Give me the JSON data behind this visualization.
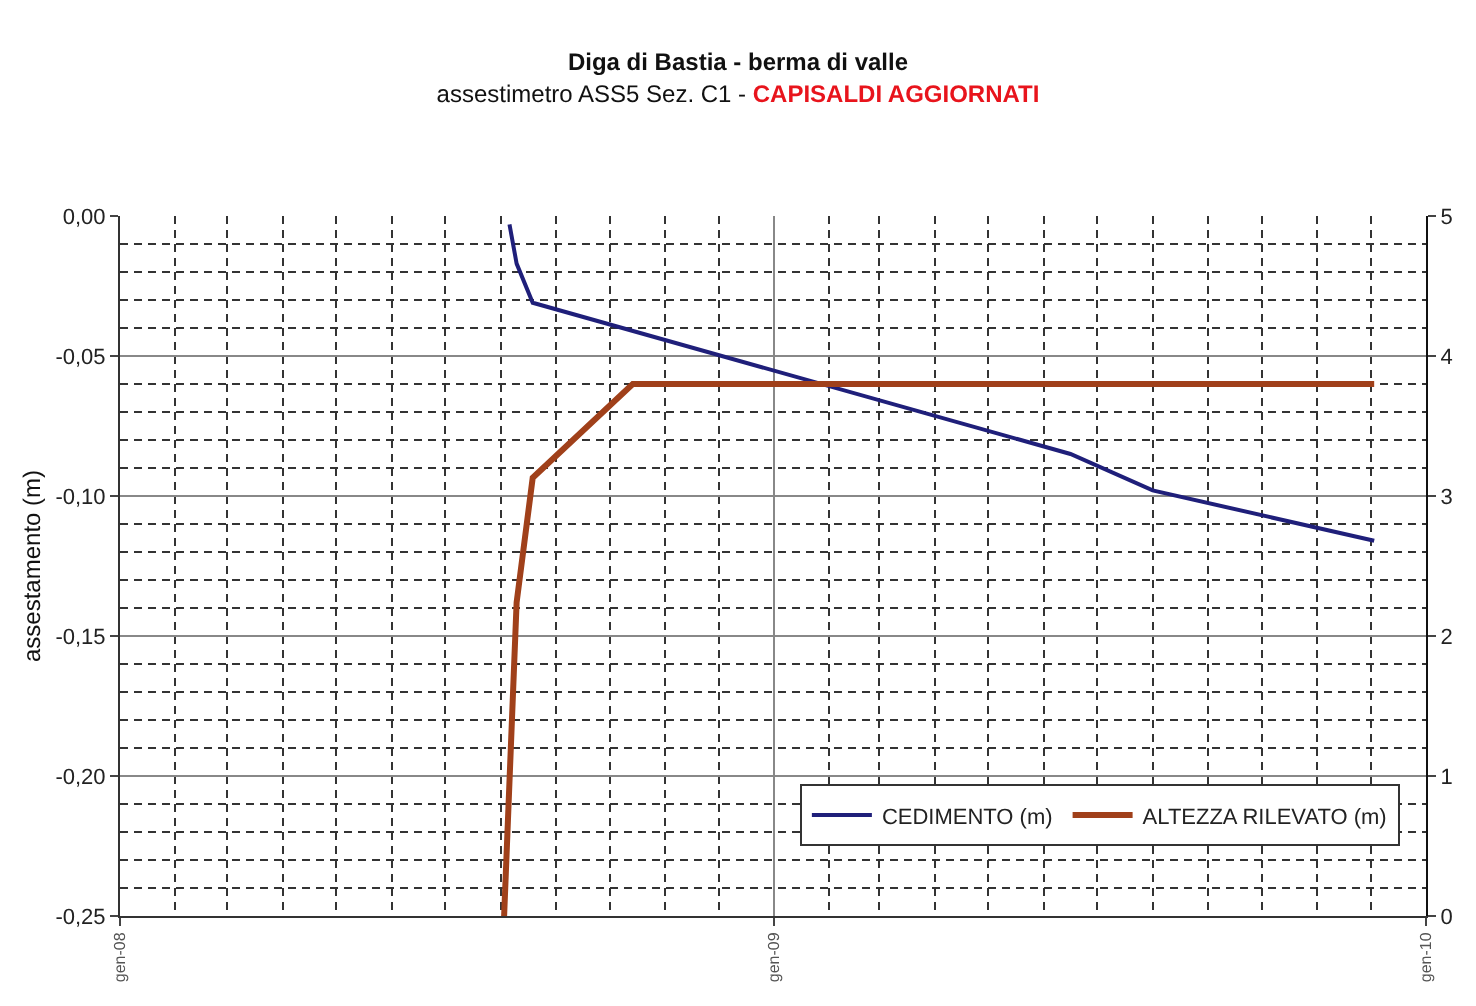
{
  "chart_data": {
    "type": "line",
    "title": "Diga di Bastia - berma di valle",
    "subtitle": "assestimetro ASS5 Sez. C1 - CAPISALDI AGGIORNATI",
    "ylabel": "assestamento (m)",
    "series": [
      {
        "name": "CEDIMENTO (m)",
        "color": "#1f1f7a",
        "x": [
          "2008-08-06",
          "2008-08-10",
          "2008-08-19",
          "2009-06-16",
          "2009-08-01",
          "2009-12-03"
        ],
        "values": [
          -0.003,
          -0.017,
          -0.031,
          -0.085,
          -0.098,
          -0.116
        ]
      },
      {
        "name": "ALTEZZA RILEVATO (m)",
        "color": "#a0401a",
        "axis": "y2",
        "x": [
          "2008-08-03",
          "2008-08-10",
          "2008-08-19",
          "2008-10-14",
          "2009-12-03"
        ],
        "values": [
          0,
          2.24,
          3.13,
          3.8,
          3.8
        ]
      }
    ],
    "xlim": [
      "2008-01-01",
      "2010-01-01"
    ],
    "xticks": [
      {
        "value": "2008-01-01",
        "label": "gen-08"
      },
      {
        "value": "2008-02-01",
        "label": null
      },
      {
        "value": "2008-03-01",
        "label": null
      },
      {
        "value": "2008-04-01",
        "label": null
      },
      {
        "value": "2008-05-01",
        "label": null
      },
      {
        "value": "2008-06-01",
        "label": null
      },
      {
        "value": "2008-07-01",
        "label": null
      },
      {
        "value": "2008-08-01",
        "label": null
      },
      {
        "value": "2008-09-01",
        "label": null
      },
      {
        "value": "2008-10-01",
        "label": null
      },
      {
        "value": "2008-11-01",
        "label": null
      },
      {
        "value": "2008-12-01",
        "label": null
      },
      {
        "value": "2009-01-01",
        "label": "gen-09"
      },
      {
        "value": "2009-02-01",
        "label": null
      },
      {
        "value": "2009-03-01",
        "label": null
      },
      {
        "value": "2009-04-01",
        "label": null
      },
      {
        "value": "2009-05-01",
        "label": null
      },
      {
        "value": "2009-06-01",
        "label": null
      },
      {
        "value": "2009-07-01",
        "label": null
      },
      {
        "value": "2009-08-01",
        "label": null
      },
      {
        "value": "2009-09-01",
        "label": null
      },
      {
        "value": "2009-10-01",
        "label": null
      },
      {
        "value": "2009-11-01",
        "label": null
      },
      {
        "value": "2009-12-01",
        "label": null
      },
      {
        "value": "2010-01-01",
        "label": "gen-10"
      }
    ],
    "ylim": [
      -0.25,
      0
    ],
    "yticks": [
      {
        "value": 0,
        "label": "0,00"
      },
      {
        "value": -0.01,
        "label": null
      },
      {
        "value": -0.02,
        "label": null
      },
      {
        "value": -0.03,
        "label": null
      },
      {
        "value": -0.04,
        "label": null
      },
      {
        "value": -0.05,
        "label": "-0,05"
      },
      {
        "value": -0.06,
        "label": null
      },
      {
        "value": -0.07,
        "label": null
      },
      {
        "value": -0.08,
        "label": null
      },
      {
        "value": -0.09,
        "label": null
      },
      {
        "value": -0.1,
        "label": "-0,10"
      },
      {
        "value": -0.11,
        "label": null
      },
      {
        "value": -0.12,
        "label": null
      },
      {
        "value": -0.13,
        "label": null
      },
      {
        "value": -0.14,
        "label": null
      },
      {
        "value": -0.15,
        "label": "-0,15"
      },
      {
        "value": -0.16,
        "label": null
      },
      {
        "value": -0.17,
        "label": null
      },
      {
        "value": -0.18,
        "label": null
      },
      {
        "value": -0.19,
        "label": null
      },
      {
        "value": -0.2,
        "label": "-0,20"
      },
      {
        "value": -0.21,
        "label": null
      },
      {
        "value": -0.22,
        "label": null
      },
      {
        "value": -0.23,
        "label": null
      },
      {
        "value": -0.24,
        "label": null
      },
      {
        "value": -0.25,
        "label": "-0,25"
      }
    ],
    "y2lim": [
      0,
      5
    ],
    "y2ticks": [
      0,
      1,
      2,
      3,
      4,
      5
    ],
    "grid": true,
    "legend": "bottom right",
    "line_style": "solid",
    "marker": "none"
  }
}
